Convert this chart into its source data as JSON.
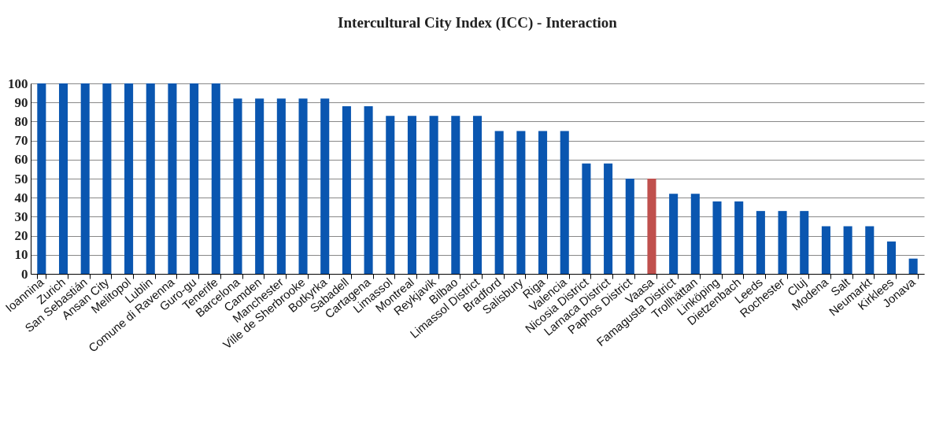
{
  "chart_data": {
    "type": "bar",
    "title": "Intercultural City Index (ICC) - Interaction",
    "categories": [
      "Ioannina",
      "Zurich",
      "San Sebastián",
      "Ansan City",
      "Melitopol",
      "Lublin",
      "Comune di Ravenna",
      "Guro-gu",
      "Tenerife",
      "Barcelona",
      "Camden",
      "Manchester",
      "Ville de Sherbrooke",
      "Botkyrka",
      "Sabadell",
      "Cartagena",
      "Limassol",
      "Montreal",
      "Reykjavik",
      "Bilbao",
      "Limassol District",
      "Bradford",
      "Salisbury",
      "Riga",
      "Valencia",
      "Nicosia District",
      "Larnaca District",
      "Paphos District",
      "Vaasa",
      "Famagusta District",
      "Trollhättan",
      "Linköping",
      "Dietzenbach",
      "Leeds",
      "Rochester",
      "Cluj",
      "Modena",
      "Salt",
      "Neumarkt",
      "Kirklees",
      "Jonava"
    ],
    "values": [
      100,
      100,
      100,
      100,
      100,
      100,
      100,
      100,
      100,
      92,
      92,
      92,
      92,
      92,
      88,
      88,
      83,
      83,
      83,
      83,
      83,
      75,
      75,
      75,
      75,
      58,
      58,
      50,
      50,
      42,
      42,
      38,
      38,
      33,
      33,
      33,
      25,
      25,
      25,
      17,
      8
    ],
    "colors": [
      "#0a56b0",
      "#0a56b0",
      "#0a56b0",
      "#0a56b0",
      "#0a56b0",
      "#0a56b0",
      "#0a56b0",
      "#0a56b0",
      "#0a56b0",
      "#0a56b0",
      "#0a56b0",
      "#0a56b0",
      "#0a56b0",
      "#0a56b0",
      "#0a56b0",
      "#0a56b0",
      "#0a56b0",
      "#0a56b0",
      "#0a56b0",
      "#0a56b0",
      "#0a56b0",
      "#0a56b0",
      "#0a56b0",
      "#0a56b0",
      "#0a56b0",
      "#0a56b0",
      "#0a56b0",
      "#0a56b0",
      "#c0504d",
      "#0a56b0",
      "#0a56b0",
      "#0a56b0",
      "#0a56b0",
      "#0a56b0",
      "#0a56b0",
      "#0a56b0",
      "#0a56b0",
      "#0a56b0",
      "#0a56b0",
      "#0a56b0",
      "#0a56b0"
    ],
    "ylim": [
      0,
      100
    ],
    "yticks": [
      0,
      10,
      20,
      30,
      40,
      50,
      60,
      70,
      80,
      90,
      100
    ],
    "grid": "y"
  }
}
